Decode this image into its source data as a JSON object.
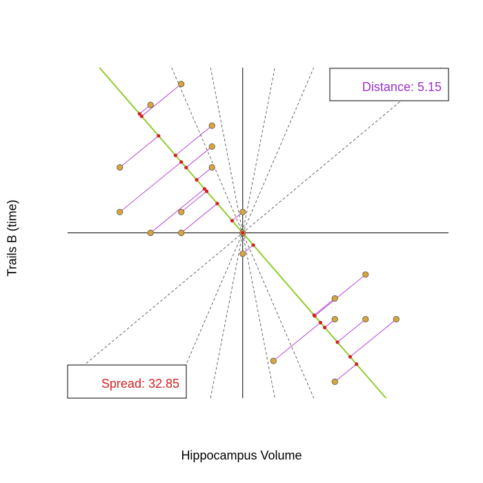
{
  "chart_data": {
    "type": "scatter",
    "xlabel": "Hippocampus Volume",
    "ylabel": "Trails B (time)",
    "xlim": [
      -5.7,
      6.7
    ],
    "ylim": [
      -5.55,
      5.55
    ],
    "grid": false,
    "fit_line": {
      "slope": -1.19,
      "intercept": 0
    },
    "guide_line_slopes": [
      0.86,
      2.4,
      5.3,
      -5.3,
      -2.4
    ],
    "points": [
      {
        "x": -2,
        "y": 5
      },
      {
        "x": -3,
        "y": 4.3
      },
      {
        "x": -1,
        "y": 3.6
      },
      {
        "x": -4,
        "y": 2.2
      },
      {
        "x": -1,
        "y": 2.9
      },
      {
        "x": -1,
        "y": 2.2
      },
      {
        "x": -4,
        "y": 0.7
      },
      {
        "x": -2,
        "y": 0.7
      },
      {
        "x": -3,
        "y": 0
      },
      {
        "x": -2,
        "y": 0
      },
      {
        "x": 0,
        "y": 0.7
      },
      {
        "x": 0,
        "y": 0
      },
      {
        "x": 0,
        "y": -0.7
      },
      {
        "x": 4,
        "y": -1.4
      },
      {
        "x": 3,
        "y": -2.2
      },
      {
        "x": 3,
        "y": -2.9
      },
      {
        "x": 4,
        "y": -2.9
      },
      {
        "x": 5,
        "y": -2.9
      },
      {
        "x": 1,
        "y": -4.3
      },
      {
        "x": 3,
        "y": -5
      }
    ],
    "annotations": {
      "distance_label": "Distance: 5.15",
      "spread_label": "Spread: 32.85"
    },
    "colors": {
      "point_fill": "#D9A53C",
      "projection": "#D22222",
      "residual_line": "#B030D0",
      "fit_line": "#8FCC2A",
      "distance_text": "#9932CC",
      "spread_text": "#D22222"
    }
  }
}
